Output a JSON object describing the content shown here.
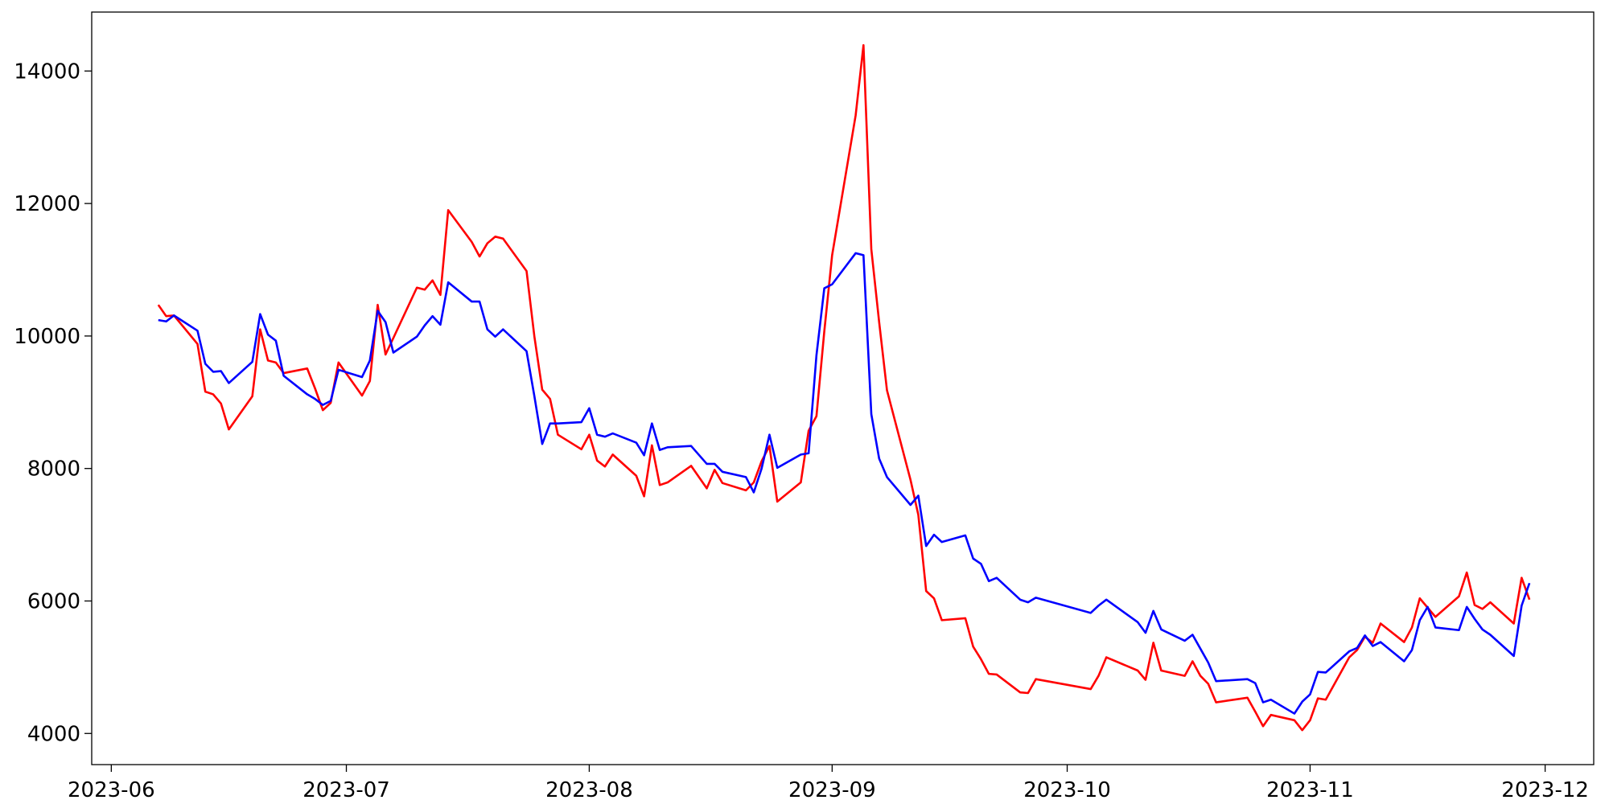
{
  "chart_data": {
    "type": "line",
    "x": [
      19515,
      19516,
      19517,
      19520,
      19521,
      19522,
      19523,
      19524,
      19527,
      19528,
      19529,
      19530,
      19531,
      19534,
      19535,
      19536,
      19537,
      19538,
      19541,
      19542,
      19543,
      19544,
      19545,
      19548,
      19549,
      19550,
      19551,
      19552,
      19555,
      19556,
      19557,
      19558,
      19559,
      19562,
      19563,
      19564,
      19565,
      19566,
      19569,
      19570,
      19571,
      19572,
      19573,
      19576,
      19577,
      19578,
      19579,
      19580,
      19583,
      19585,
      19586,
      19587,
      19590,
      19591,
      19592,
      19593,
      19594,
      19597,
      19598,
      19599,
      19600,
      19601,
      19604,
      19605,
      19606,
      19607,
      19608,
      19611,
      19612,
      19613,
      19614,
      19615,
      19618,
      19619,
      19620,
      19621,
      19622,
      19625,
      19626,
      19627,
      19634,
      19635,
      19636,
      19640,
      19641,
      19642,
      19643,
      19646,
      19647,
      19648,
      19649,
      19650,
      19654,
      19655,
      19656,
      19657,
      19660,
      19661,
      19662,
      19663,
      19664,
      19667,
      19668,
      19669,
      19670,
      19671,
      19674,
      19675,
      19676,
      19677,
      19678,
      19681,
      19682,
      19683,
      19684,
      19685,
      19688,
      19689,
      19690
    ],
    "series": [
      {
        "color": "#ff0000",
        "values": [
          10470,
          10300,
          10310,
          9880,
          9160,
          9120,
          8980,
          8590,
          9090,
          10100,
          9630,
          9600,
          9440,
          9510,
          9210,
          8880,
          8990,
          9600,
          9100,
          9320,
          10470,
          9720,
          9970,
          10730,
          10700,
          10840,
          10620,
          11900,
          11420,
          11200,
          11400,
          11500,
          11470,
          10980,
          9990,
          9190,
          9050,
          8510,
          8290,
          8510,
          8120,
          8030,
          8210,
          7890,
          7580,
          8350,
          7750,
          7790,
          8040,
          7700,
          7980,
          7780,
          7670,
          7790,
          8110,
          8340,
          7500,
          7790,
          8570,
          8790,
          10070,
          11220,
          13330,
          14390,
          11310,
          10210,
          9180,
          7830,
          7300,
          6150,
          6040,
          5710,
          5740,
          5310,
          5120,
          4900,
          4890,
          4620,
          4610,
          4820,
          4670,
          4870,
          5150,
          4950,
          4810,
          5370,
          4950,
          4870,
          5090,
          4870,
          4750,
          4470,
          4540,
          4330,
          4110,
          4280,
          4200,
          4050,
          4200,
          4530,
          4510,
          5150,
          5260,
          5460,
          5370,
          5660,
          5380,
          5600,
          6040,
          5900,
          5760,
          6070,
          6430,
          5940,
          5880,
          5980,
          5660,
          6350,
          6020
        ]
      },
      {
        "color": "#0000ff",
        "values": [
          10240,
          10220,
          10310,
          10080,
          9580,
          9460,
          9470,
          9290,
          9610,
          10330,
          10020,
          9930,
          9400,
          9120,
          9050,
          8960,
          9020,
          9490,
          9380,
          9630,
          10380,
          10210,
          9750,
          9990,
          10160,
          10300,
          10170,
          10810,
          10520,
          10520,
          10100,
          9990,
          10100,
          9770,
          9090,
          8370,
          8680,
          8680,
          8700,
          8910,
          8510,
          8480,
          8530,
          8390,
          8200,
          8680,
          8280,
          8320,
          8340,
          8070,
          8070,
          7950,
          7870,
          7640,
          8000,
          8510,
          8010,
          8210,
          8230,
          9710,
          10720,
          10780,
          11250,
          11220,
          8820,
          8150,
          7870,
          7450,
          7590,
          6830,
          7000,
          6890,
          6990,
          6640,
          6560,
          6300,
          6350,
          6020,
          5980,
          6050,
          5820,
          5930,
          6020,
          5680,
          5520,
          5850,
          5570,
          5400,
          5490,
          5280,
          5070,
          4790,
          4820,
          4760,
          4470,
          4510,
          4300,
          4480,
          4590,
          4930,
          4920,
          5240,
          5290,
          5480,
          5320,
          5380,
          5090,
          5260,
          5710,
          5910,
          5600,
          5560,
          5910,
          5730,
          5570,
          5490,
          5170,
          5930,
          6270
        ]
      }
    ],
    "xlim": [
      19506.5,
      19698.2
    ],
    "xticks": [
      {
        "value": 19509,
        "label": "2023-06"
      },
      {
        "value": 19539,
        "label": "2023-07"
      },
      {
        "value": 19570,
        "label": "2023-08"
      },
      {
        "value": 19601,
        "label": "2023-09"
      },
      {
        "value": 19631,
        "label": "2023-10"
      },
      {
        "value": 19662,
        "label": "2023-11"
      },
      {
        "value": 19692,
        "label": "2023-12"
      }
    ],
    "ylim": [
      3530,
      14890
    ],
    "yticks": [
      4000,
      6000,
      8000,
      10000,
      12000,
      14000
    ],
    "grid": false
  }
}
